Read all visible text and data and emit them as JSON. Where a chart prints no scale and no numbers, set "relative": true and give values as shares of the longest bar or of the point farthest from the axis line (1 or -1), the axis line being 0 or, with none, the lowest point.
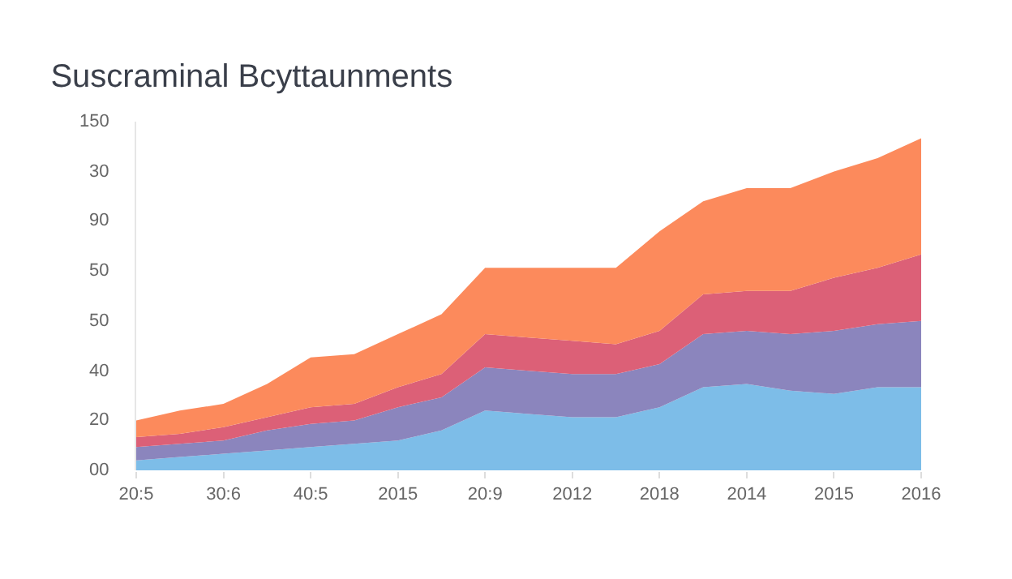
{
  "chart_data": {
    "type": "area",
    "stacked": true,
    "relative": true,
    "title": "Suscraminal Bcyttaunments",
    "categories": [
      "20:5",
      null,
      "30:6",
      null,
      "40:5",
      null,
      "2015",
      null,
      "20:9",
      null,
      "2012",
      null,
      "2018",
      null,
      "2014",
      null,
      "2015",
      null,
      "2016"
    ],
    "series": [
      {
        "color": "#7dbde8",
        "values": [
          0.03,
          0.04,
          0.05,
          0.06,
          0.07,
          0.08,
          0.09,
          0.12,
          0.18,
          0.17,
          0.16,
          0.16,
          0.19,
          0.25,
          0.26,
          0.24,
          0.23,
          0.25,
          0.25
        ]
      },
      {
        "color": "#8b85bd",
        "values": [
          0.04,
          0.04,
          0.04,
          0.06,
          0.07,
          0.07,
          0.1,
          0.1,
          0.13,
          0.13,
          0.13,
          0.13,
          0.13,
          0.16,
          0.16,
          0.17,
          0.19,
          0.19,
          0.2
        ]
      },
      {
        "color": "#dc6077",
        "values": [
          0.03,
          0.03,
          0.04,
          0.04,
          0.05,
          0.05,
          0.06,
          0.07,
          0.1,
          0.1,
          0.1,
          0.09,
          0.1,
          0.12,
          0.12,
          0.13,
          0.16,
          0.17,
          0.2
        ]
      },
      {
        "color": "#fc8a5c",
        "values": [
          0.05,
          0.07,
          0.07,
          0.1,
          0.15,
          0.15,
          0.16,
          0.18,
          0.2,
          0.21,
          0.22,
          0.23,
          0.3,
          0.28,
          0.31,
          0.31,
          0.32,
          0.33,
          0.35
        ]
      }
    ],
    "annotations": [
      "00",
      "20",
      "40",
      "50",
      "50",
      "90",
      "30",
      "150"
    ]
  }
}
